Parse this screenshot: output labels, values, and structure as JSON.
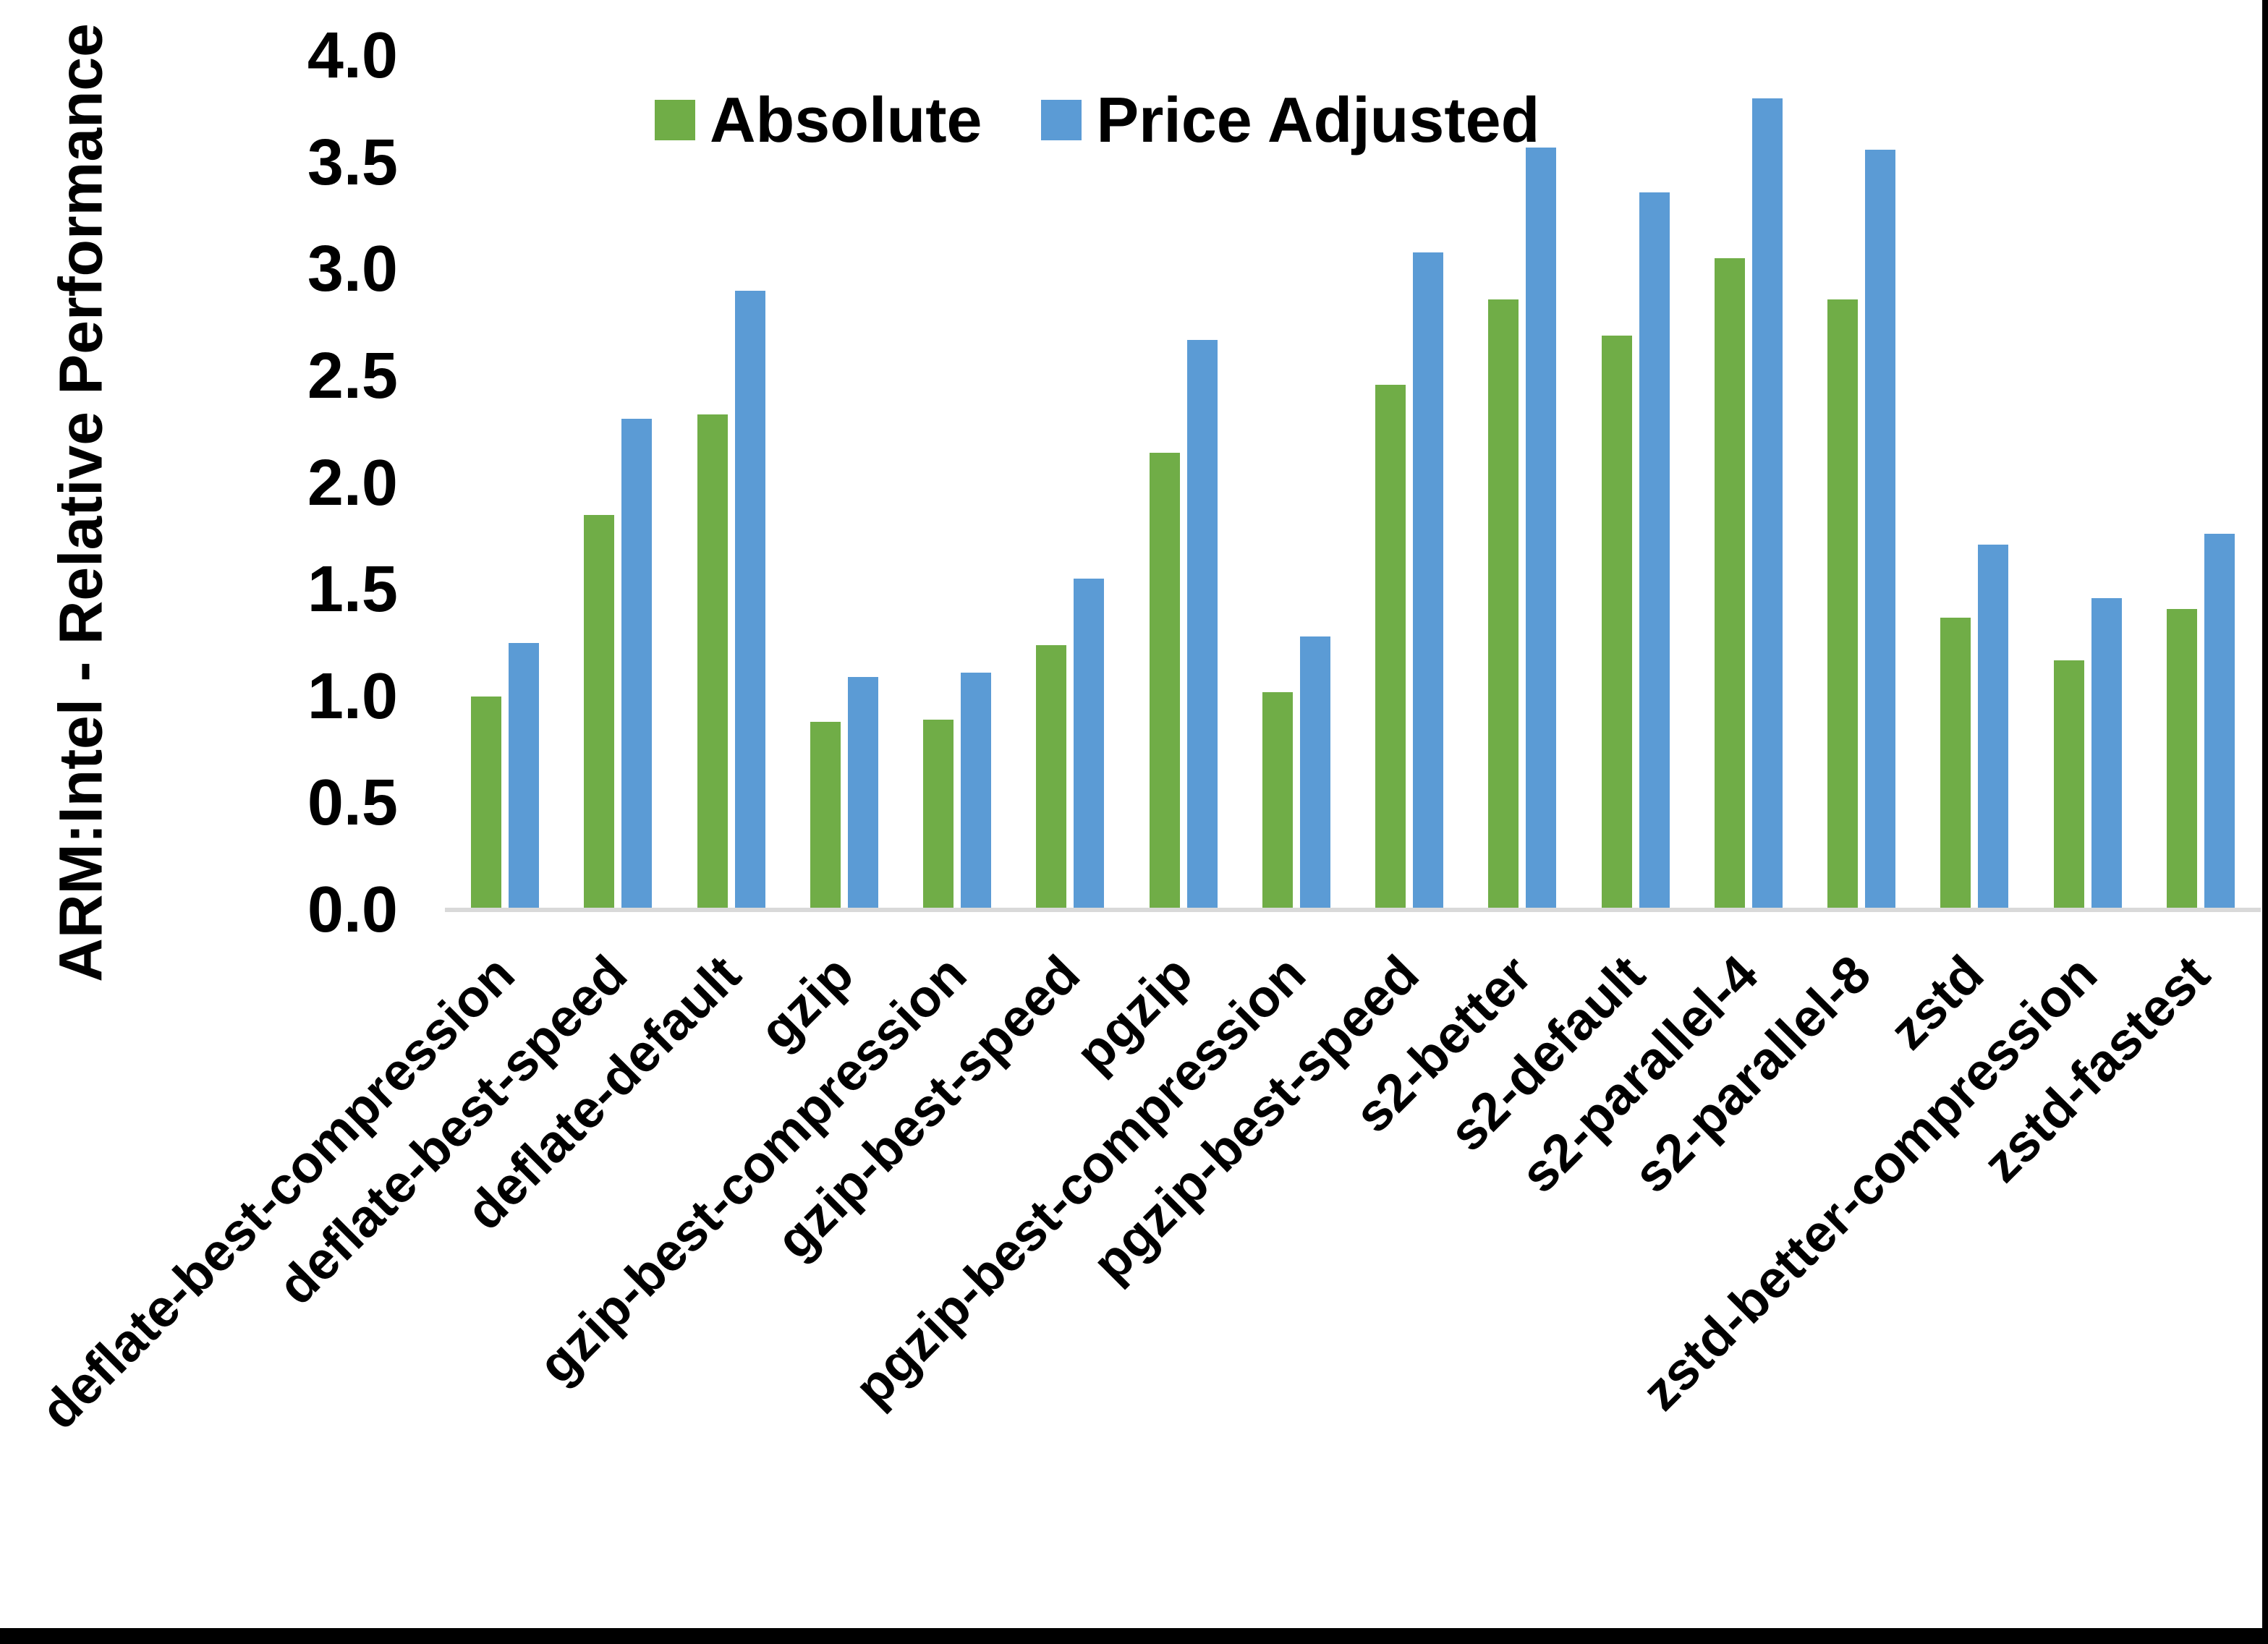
{
  "chart_data": {
    "type": "bar",
    "title": "",
    "ylabel": "ARM:Intel - Relative Performance",
    "xlabel": "",
    "ylim": [
      0.0,
      4.0
    ],
    "y_tick_step": 0.5,
    "y_ticks": [
      "4.0",
      "3.5",
      "3.0",
      "2.5",
      "2.0",
      "1.5",
      "1.0",
      "0.5",
      "0.0"
    ],
    "grid": false,
    "legend_position": "top-center",
    "categories": [
      "deflate-best-compression",
      "deflate-best-speed",
      "deflate-default",
      "gzip",
      "gzip-best-compression",
      "gzip-best-speed",
      "pgzip",
      "pgzip-best-compression",
      "pgzip-best-speed",
      "s2-better",
      "s2-default",
      "s2-parallel-4",
      "s2-parallel-8",
      "zstd",
      "zstd-better-compression",
      "zstd-fastest"
    ],
    "series": [
      {
        "name": "Absolute",
        "color": "#70AD47",
        "values": [
          1.0,
          1.85,
          2.32,
          0.88,
          0.89,
          1.24,
          2.14,
          1.02,
          2.46,
          2.86,
          2.69,
          3.05,
          2.86,
          1.37,
          1.17,
          1.41
        ]
      },
      {
        "name": "Price Adjusted",
        "color": "#5B9BD5",
        "values": [
          1.25,
          2.3,
          2.9,
          1.09,
          1.11,
          1.55,
          2.67,
          1.28,
          3.08,
          3.57,
          3.36,
          3.8,
          3.56,
          1.71,
          1.46,
          1.76
        ]
      }
    ]
  },
  "colors": {
    "background": "#FFFFFF",
    "axis_line": "#D9D9D9",
    "text": "#000000",
    "edge_border": "#000000"
  }
}
